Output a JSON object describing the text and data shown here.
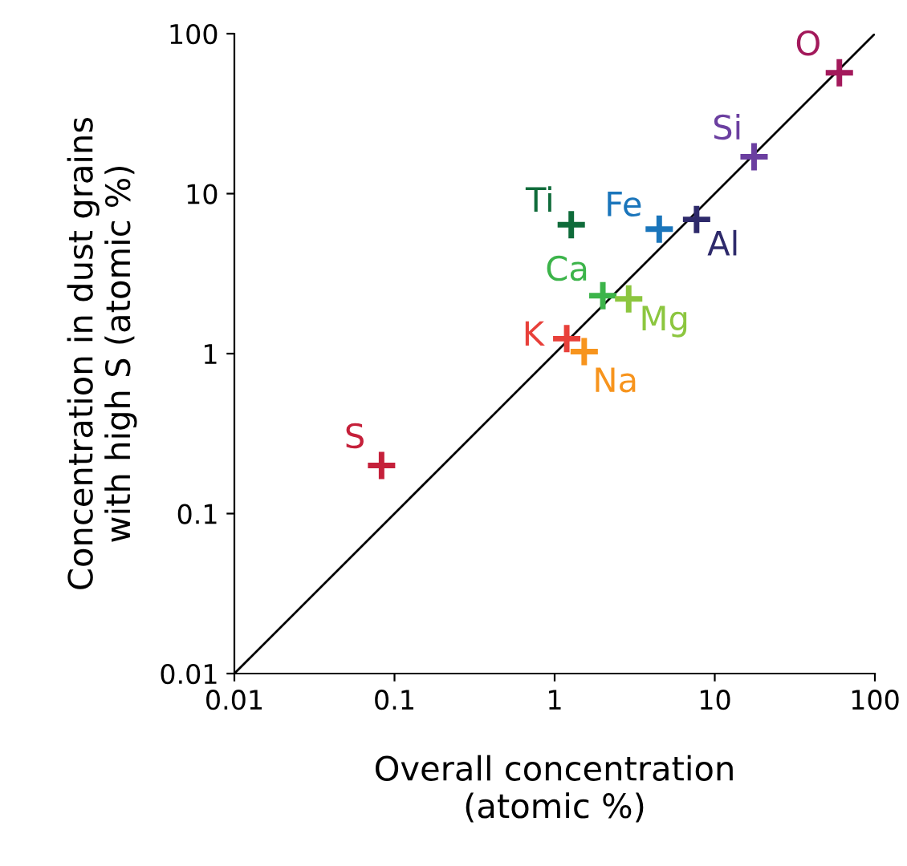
{
  "chart_data": {
    "type": "scatter",
    "xlabel": "Overall concentration\n(atomic %)",
    "ylabel": "Concentration in dust grains\nwith high S (atomic %)",
    "log": "xy",
    "xlim": [
      0.01,
      100
    ],
    "ylim": [
      0.01,
      100
    ],
    "xticks": [
      0.01,
      0.1,
      1,
      10,
      100
    ],
    "yticks": [
      0.01,
      0.1,
      1,
      10,
      100
    ],
    "grid": false,
    "marker": "cross",
    "series": [
      {
        "type": "line",
        "marker": "none",
        "color": "#000000",
        "x": [
          0.01,
          100
        ],
        "values": [
          0.01,
          100
        ]
      },
      {
        "name": "O",
        "color": "#a3195b",
        "x": [
          60
        ],
        "values": [
          57
        ]
      },
      {
        "name": "Si",
        "color": "#6b3fa0",
        "x": [
          17.6
        ],
        "values": [
          17
        ]
      },
      {
        "name": "Ti",
        "color": "#0f6b3a",
        "x": [
          1.27
        ],
        "values": [
          6.4
        ]
      },
      {
        "name": "Fe",
        "color": "#1a75bb",
        "x": [
          4.5
        ],
        "values": [
          6.0
        ]
      },
      {
        "name": "Al",
        "color": "#2e2a6b",
        "x": [
          7.7
        ],
        "values": [
          6.9
        ]
      },
      {
        "name": "Ca",
        "color": "#3cb44a",
        "x": [
          2.0
        ],
        "values": [
          2.3
        ]
      },
      {
        "name": "Mg",
        "color": "#8cc63f",
        "x": [
          2.9
        ],
        "values": [
          2.2
        ]
      },
      {
        "name": "K",
        "color": "#e8403a",
        "x": [
          1.19
        ],
        "values": [
          1.24
        ]
      },
      {
        "name": "Na",
        "color": "#f7941d",
        "x": [
          1.53
        ],
        "values": [
          1.03
        ]
      },
      {
        "name": "S",
        "color": "#c5203a",
        "x": [
          0.083
        ],
        "values": [
          0.2
        ]
      }
    ]
  }
}
